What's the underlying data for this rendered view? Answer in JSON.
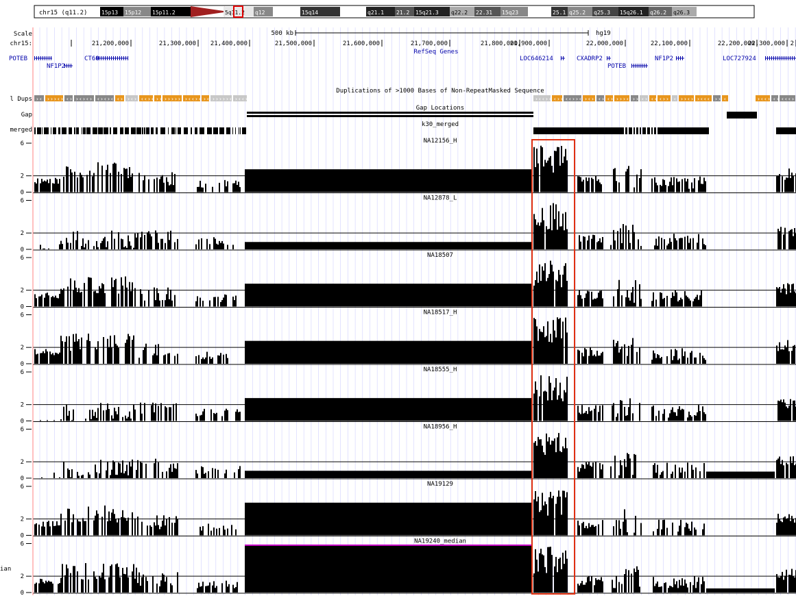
{
  "ideogram": {
    "chrom_label": "chr15 (q11.2)",
    "bands": [
      {
        "label": "15p13",
        "fill": "#000000",
        "text": "#ffffff"
      },
      {
        "label": "15p12",
        "fill": "#888888",
        "text": "#ffffff"
      },
      {
        "label": "15p11.2",
        "fill": "#000000",
        "text": "#ffffff"
      },
      {
        "label": "",
        "fill": "#a02020",
        "text": "#ffffff"
      },
      {
        "label": "5q11.2",
        "fill": "#e8e8e8",
        "text": "#000000"
      },
      {
        "label": "q12",
        "fill": "#888888",
        "text": "#ffffff"
      },
      {
        "label": "",
        "fill": "#ffffff",
        "text": "#000000"
      },
      {
        "label": "15q14",
        "fill": "#333333",
        "text": "#ffffff"
      },
      {
        "label": "",
        "fill": "#ffffff",
        "text": "#000000"
      },
      {
        "label": "q21.1",
        "fill": "#222222",
        "text": "#ffffff"
      },
      {
        "label": "21.2",
        "fill": "#555555",
        "text": "#ffffff"
      },
      {
        "label": "15q21.3",
        "fill": "#222222",
        "text": "#ffffff"
      },
      {
        "label": "q22.2",
        "fill": "#aaaaaa",
        "text": "#000000"
      },
      {
        "label": "22.31",
        "fill": "#555555",
        "text": "#ffffff"
      },
      {
        "label": "15q23",
        "fill": "#888888",
        "text": "#ffffff"
      },
      {
        "label": "",
        "fill": "#ffffff",
        "text": "#000000"
      },
      {
        "label": "25.1",
        "fill": "#333333",
        "text": "#ffffff"
      },
      {
        "label": "q25.2",
        "fill": "#888888",
        "text": "#ffffff"
      },
      {
        "label": "q25.3",
        "fill": "#444444",
        "text": "#ffffff"
      },
      {
        "label": "15q26.1",
        "fill": "#222222",
        "text": "#ffffff"
      },
      {
        "label": "q26.2",
        "fill": "#666666",
        "text": "#ffffff"
      },
      {
        "label": "q26.3",
        "fill": "#aaaaaa",
        "text": "#000000"
      }
    ],
    "highlight_color": "#dd0000"
  },
  "scale": {
    "label": "Scale",
    "bar_label": "500 kb",
    "assembly": "hg19",
    "chrom_row_label": "chr15:",
    "positions": [
      "21,200,000",
      "21,300,000",
      "21,400,000",
      "21,500,000",
      "21,600,000",
      "21,700,000",
      "21,800,000",
      "21,900,000",
      "22,000,000",
      "22,100,000",
      "22,200,000",
      "22,300,000",
      "2"
    ]
  },
  "genes": {
    "track_title": "RefSeq Genes",
    "items": [
      {
        "name": "POTEB",
        "row": 0
      },
      {
        "name": "CT60",
        "row": 0
      },
      {
        "name": "NF1P2",
        "row": 1
      },
      {
        "name": "LOC646214",
        "row": 0
      },
      {
        "name": "CXADRP2",
        "row": 0
      },
      {
        "name": "POTEB",
        "row": 1
      },
      {
        "name": "NF1P2",
        "row": 0
      },
      {
        "name": "LOC727924",
        "row": 0
      }
    ]
  },
  "tracks": {
    "dups_label": "l Dups",
    "dups_title": "Duplications of >1000 Bases of Non-RepeatMasked Sequence",
    "gap_label": "Gap",
    "gap_title": "Gap Locations",
    "merged_label": "merged",
    "merged_title": "k30_merged",
    "dup_colors": {
      "orange": "#e8961e",
      "gray": "#888888",
      "light": "#c8c8c8"
    },
    "wig_axis_labels": [
      "6",
      "2",
      "0"
    ],
    "last_row_label": "ian",
    "samples": [
      {
        "name": "NA12156_H",
        "seed": 11
      },
      {
        "name": "NA12878_L",
        "seed": 23
      },
      {
        "name": "NA18507",
        "seed": 37
      },
      {
        "name": "NA18517_H",
        "seed": 41
      },
      {
        "name": "NA18555_H",
        "seed": 53
      },
      {
        "name": "NA18956_H",
        "seed": 67
      },
      {
        "name": "NA19129",
        "seed": 79
      },
      {
        "name": "NA19240_median",
        "seed": 97
      }
    ]
  },
  "highlight": {
    "color": "#e03010"
  },
  "colors": {
    "accent_line": "#ff8080",
    "grid": "#d0d0ff",
    "magenta": "#cc00cc"
  }
}
